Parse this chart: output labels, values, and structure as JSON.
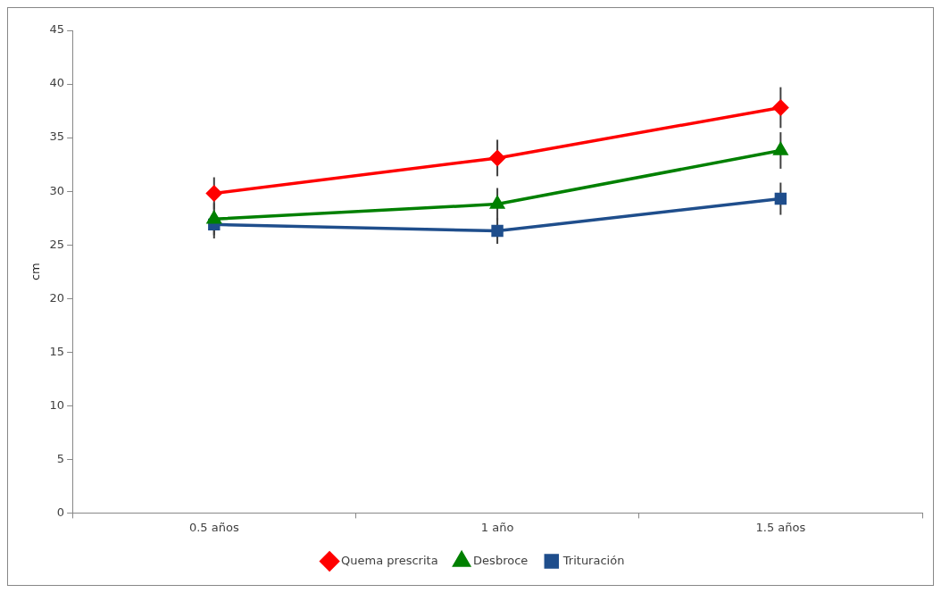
{
  "chart_data": {
    "type": "line",
    "ylabel": "cm",
    "categories": [
      "0.5 años",
      "1 año",
      "1.5 años"
    ],
    "series": [
      {
        "name": "Quema prescrita",
        "color": "#ff0000",
        "marker": "diamond",
        "values": [
          29.8,
          33.1,
          37.8
        ],
        "errors": [
          1.5,
          1.7,
          1.9
        ]
      },
      {
        "name": "Desbroce",
        "color": "#008000",
        "marker": "triangle",
        "values": [
          27.4,
          28.8,
          33.8
        ],
        "errors": [
          1.5,
          1.5,
          1.7
        ]
      },
      {
        "name": "Trituración",
        "color": "#1f4e8c",
        "marker": "square",
        "values": [
          26.9,
          26.3,
          29.3
        ],
        "errors": [
          1.3,
          1.2,
          1.5
        ]
      }
    ],
    "ylim": [
      0,
      45
    ],
    "yticks": [
      0,
      5,
      10,
      15,
      20,
      25,
      30,
      35,
      40,
      45
    ],
    "grid": false,
    "legend": "bottom"
  }
}
